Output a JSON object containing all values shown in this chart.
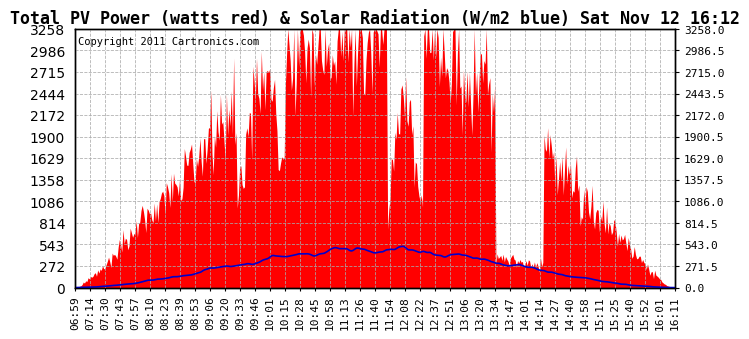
{
  "title": "Total PV Power (watts red) & Solar Radiation (W/m2 blue) Sat Nov 12 16:12",
  "copyright": "Copyright 2011 Cartronics.com",
  "ylabel_right_ticks": [
    0.0,
    271.5,
    543.0,
    814.5,
    1086.0,
    1357.5,
    1629.0,
    1900.5,
    2172.0,
    2443.5,
    2715.0,
    2986.5,
    3258.0
  ],
  "ymax": 3258.0,
  "ymin": 0.0,
  "x_labels": [
    "06:59",
    "07:14",
    "07:30",
    "07:43",
    "07:57",
    "08:10",
    "08:23",
    "08:39",
    "08:53",
    "09:06",
    "09:20",
    "09:33",
    "09:46",
    "10:01",
    "10:15",
    "10:28",
    "10:45",
    "10:58",
    "11:13",
    "11:26",
    "11:40",
    "11:54",
    "12:08",
    "12:22",
    "12:37",
    "12:51",
    "13:06",
    "13:20",
    "13:34",
    "13:47",
    "14:01",
    "14:14",
    "14:27",
    "14:40",
    "14:58",
    "15:11",
    "15:25",
    "15:40",
    "15:52",
    "16:01",
    "16:11"
  ],
  "fill_color": "#FF0000",
  "line_color": "#0000CC",
  "background_color": "#FFFFFF",
  "grid_color": "#AAAAAA",
  "title_fontsize": 12,
  "copyright_fontsize": 7.5,
  "tick_fontsize": 8,
  "ax_bg_color": "#FFFFFF"
}
